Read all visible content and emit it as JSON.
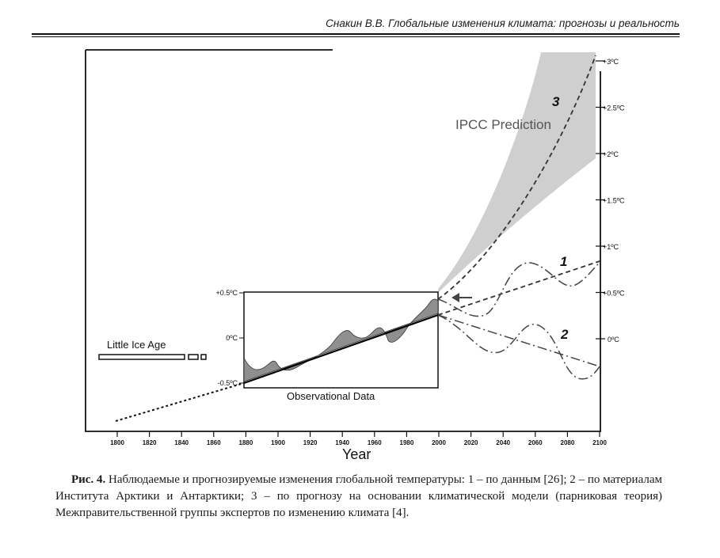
{
  "header": {
    "running_title": "Снакин В.В. Глобальные изменения климата: прогнозы и реальность"
  },
  "figure": {
    "xlabel": "Year",
    "x_ticks": [
      "1800",
      "1820",
      "1840",
      "1860",
      "1880",
      "1900",
      "1920",
      "1940",
      "1960",
      "1980",
      "2000",
      "2020",
      "2040",
      "2060",
      "2080",
      "2100"
    ],
    "right_ticks": [
      "+3ºC",
      "+2.5ºC",
      "+2ºC",
      "+1.5ºC",
      "+1ºC",
      "+0.5ºC",
      "0ºC"
    ],
    "inset_ticks": [
      "+0.5ºC",
      "0ºC",
      "-0.5ºC"
    ],
    "label_ipcc": "IPCC Prediction",
    "label_little_ice_age": "Little Ice Age",
    "label_observational": "Observational Data",
    "curve_labels": [
      "1",
      "2",
      "3"
    ]
  },
  "chart_data": {
    "type": "line",
    "xlabel": "Year",
    "ylabel": "",
    "xlim": [
      1800,
      2100
    ],
    "ylim": [
      -0.5,
      3.0
    ],
    "series": [
      {
        "name": "1",
        "x": [
          2000,
          2020,
          2040,
          2060,
          2080,
          2100
        ],
        "y": [
          0.48,
          0.4,
          0.9,
          0.6,
          0.85,
          0.6
        ]
      },
      {
        "name": "2",
        "x": [
          2000,
          2020,
          2040,
          2060,
          2080,
          2100
        ],
        "y": [
          0.48,
          0.3,
          -0.1,
          0.2,
          -0.4,
          -0.3
        ]
      },
      {
        "name": "3",
        "x": [
          2000,
          2020,
          2040,
          2060,
          2080,
          2100
        ],
        "y": [
          0.48,
          0.8,
          1.3,
          1.85,
          2.4,
          3.0
        ]
      }
    ]
  },
  "caption": {
    "label": "Рис. 4.",
    "text": " Наблюдаемые и прогнозируемые изменения глобальной температуры: 1 – по данным [26]; 2 – по материалам Института Арктики и Антарктики; 3 – по прогнозу на основании климатической модели (парниковая теория) Межправительственной группы экспертов по изменению климата [4]."
  }
}
